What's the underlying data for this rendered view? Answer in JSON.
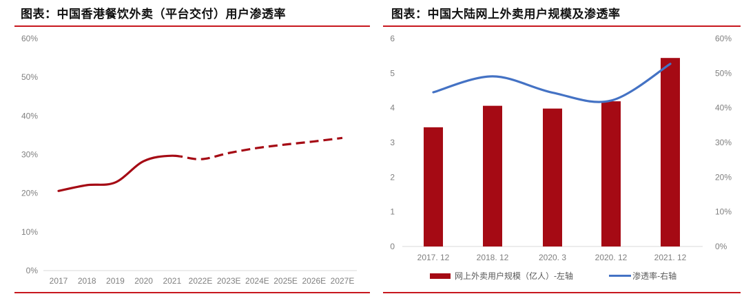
{
  "colors": {
    "accent_red": "#c7161d",
    "series_red": "#a50a14",
    "series_blue": "#4472c4",
    "tick_gray": "#7f7f7f",
    "axis_gray": "#d9d9d9"
  },
  "chart_data": [
    {
      "type": "line",
      "title": "图表：中国香港餐饮外卖（平台交付）用户渗透率",
      "x": [
        "2017",
        "2018",
        "2019",
        "2020",
        "2021",
        "2022E",
        "2023E",
        "2024E",
        "2025E",
        "2026E",
        "2027E"
      ],
      "series": [
        {
          "name": "用户渗透率",
          "values": [
            0.206,
            0.221,
            0.228,
            0.283,
            0.297,
            0.288,
            0.304,
            0.317,
            0.326,
            0.334,
            0.343
          ],
          "style_note": "solid for 2017-2021 actuals, dashed for 2022E-2027E estimates"
        }
      ],
      "xlabel": "",
      "ylabel": "",
      "ylim": [
        0,
        0.6
      ],
      "yticks": [
        "0%",
        "10%",
        "20%",
        "30%",
        "40%",
        "50%",
        "60%"
      ],
      "grid": false,
      "legend": "none"
    },
    {
      "type": "bar",
      "title": "图表：中国大陆网上外卖用户规模及渗透率",
      "categories": [
        "2017.12",
        "2018.12",
        "2020.3",
        "2020.12",
        "2021.12"
      ],
      "series": [
        {
          "name": "网上外卖用户规模（亿人）-左轴",
          "type": "bar",
          "axis": "left",
          "values": [
            3.44,
            4.06,
            3.98,
            4.19,
            5.44
          ]
        },
        {
          "name": "渗透率-右轴",
          "type": "line",
          "axis": "right",
          "values": [
            0.445,
            0.491,
            0.444,
            0.421,
            0.527
          ]
        }
      ],
      "xlabel": "",
      "ylabel": "",
      "ylim": [
        0,
        6
      ],
      "yticks": [
        "0",
        "1",
        "2",
        "3",
        "4",
        "5",
        "6"
      ],
      "y2lim": [
        0,
        0.6
      ],
      "y2ticks": [
        "0%",
        "10%",
        "20%",
        "30%",
        "40%",
        "50%",
        "60%"
      ],
      "grid": false,
      "legend": "bottom"
    }
  ],
  "left": {
    "title": "图表：中国香港餐饮外卖（平台交付）用户渗透率"
  },
  "right": {
    "title": "图表：中国大陆网上外卖用户规模及渗透率",
    "legend": {
      "bar_label": "网上外卖用户规模（亿人）-左轴",
      "line_label": "渗透率-右轴"
    }
  }
}
